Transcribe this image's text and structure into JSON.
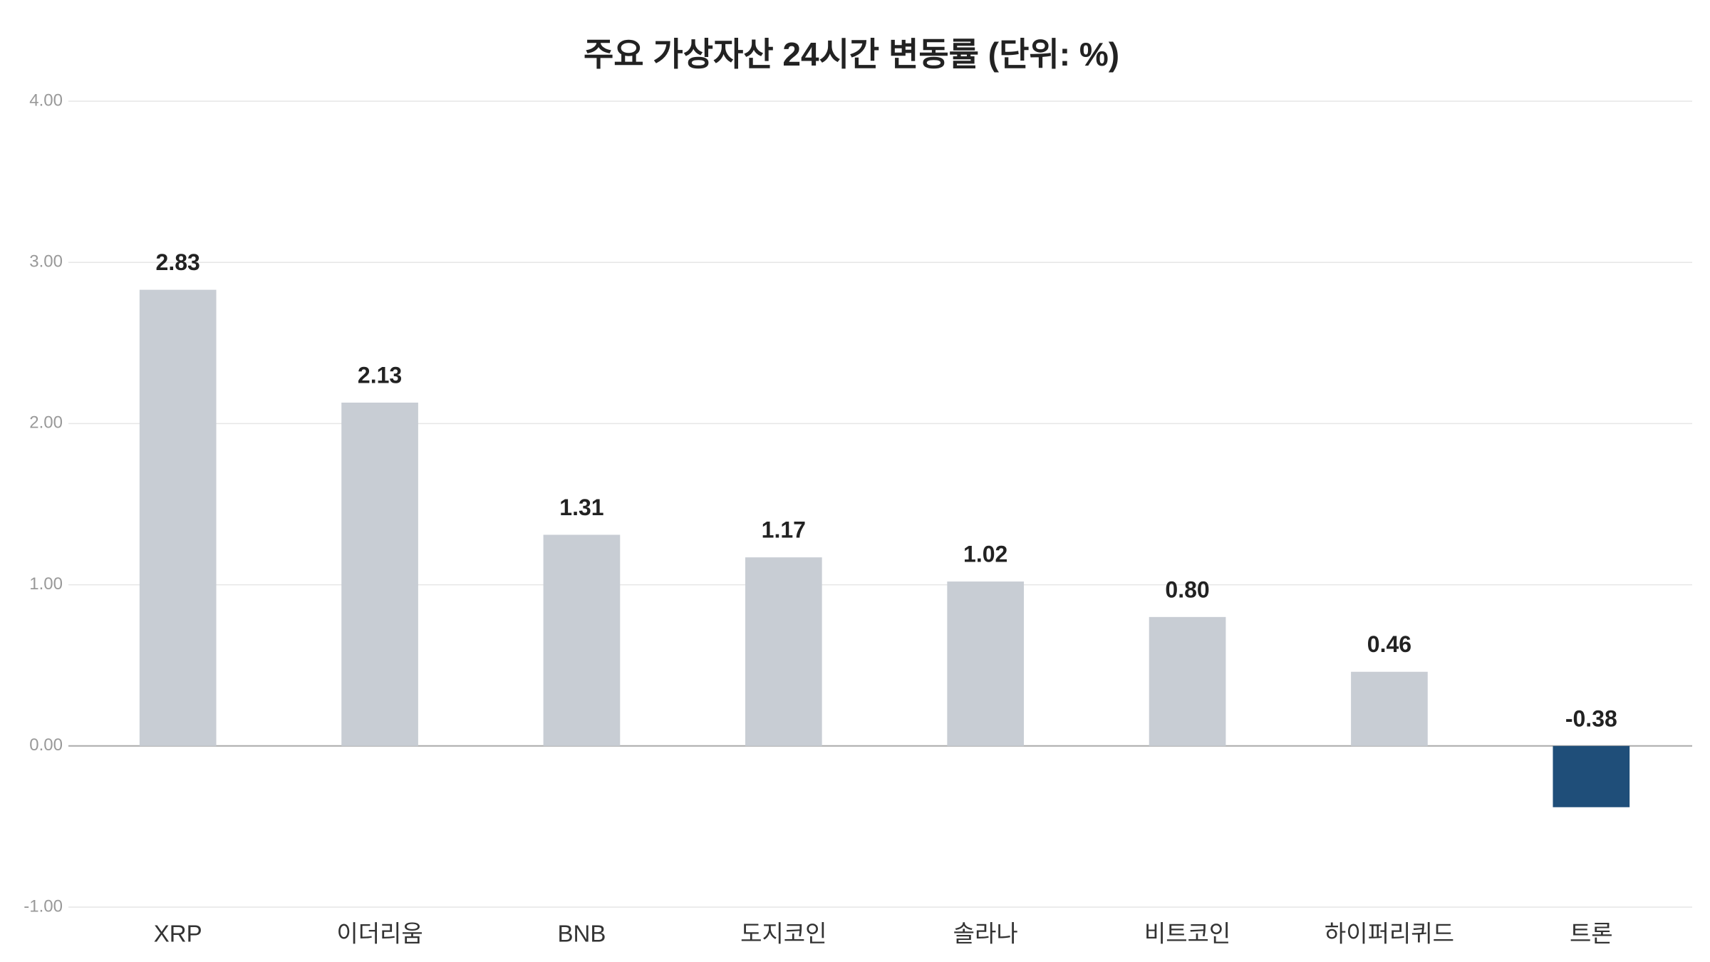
{
  "chart_data": {
    "type": "bar",
    "title": "주요 가상자산 24시간 변동률 (단위: %)",
    "categories": [
      "XRP",
      "이더리움",
      "BNB",
      "도지코인",
      "솔라나",
      "비트코인",
      "하이퍼리퀴드",
      "트론"
    ],
    "values": [
      2.83,
      2.13,
      1.31,
      1.17,
      1.02,
      0.8,
      0.46,
      -0.38
    ],
    "value_labels": [
      "2.83",
      "2.13",
      "1.31",
      "1.17",
      "1.02",
      "0.80",
      "0.46",
      "-0.38"
    ],
    "colors": [
      "#c8cdd4",
      "#c8cdd4",
      "#c8cdd4",
      "#c8cdd4",
      "#c8cdd4",
      "#c8cdd4",
      "#c8cdd4",
      "#1f4e79"
    ],
    "ylim": [
      -1,
      4
    ],
    "yticks": [
      {
        "value": -1,
        "label": "-1.00"
      },
      {
        "value": 0,
        "label": "0.00"
      },
      {
        "value": 1,
        "label": "1.00"
      },
      {
        "value": 2,
        "label": "2.00"
      },
      {
        "value": 3,
        "label": "3.00"
      },
      {
        "value": 4,
        "label": "4.00"
      }
    ],
    "grid": true
  }
}
